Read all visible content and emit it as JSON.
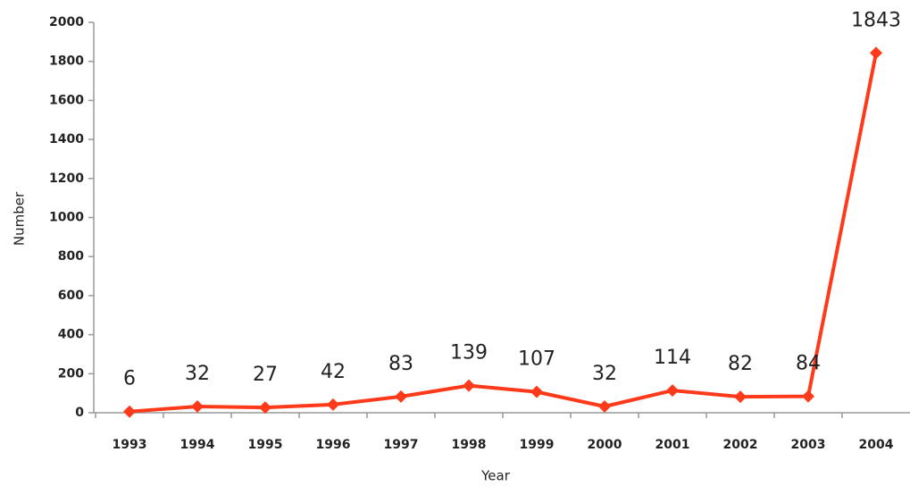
{
  "chart_data": {
    "type": "line",
    "x_label": "Year",
    "y_label": "Number",
    "categories": [
      "1993",
      "1994",
      "1995",
      "1996",
      "1997",
      "1998",
      "1999",
      "2000",
      "2001",
      "2002",
      "2003",
      "2004"
    ],
    "series": [
      {
        "name": "Number",
        "color": "#ff3a1a",
        "values": [
          6,
          32,
          27,
          42,
          83,
          139,
          107,
          32,
          114,
          82,
          84,
          1843
        ]
      }
    ],
    "ylim": [
      0,
      2000
    ],
    "yticks": [
      0,
      200,
      400,
      600,
      800,
      1000,
      1200,
      1400,
      1600,
      1800,
      2000
    ],
    "grid": false
  }
}
